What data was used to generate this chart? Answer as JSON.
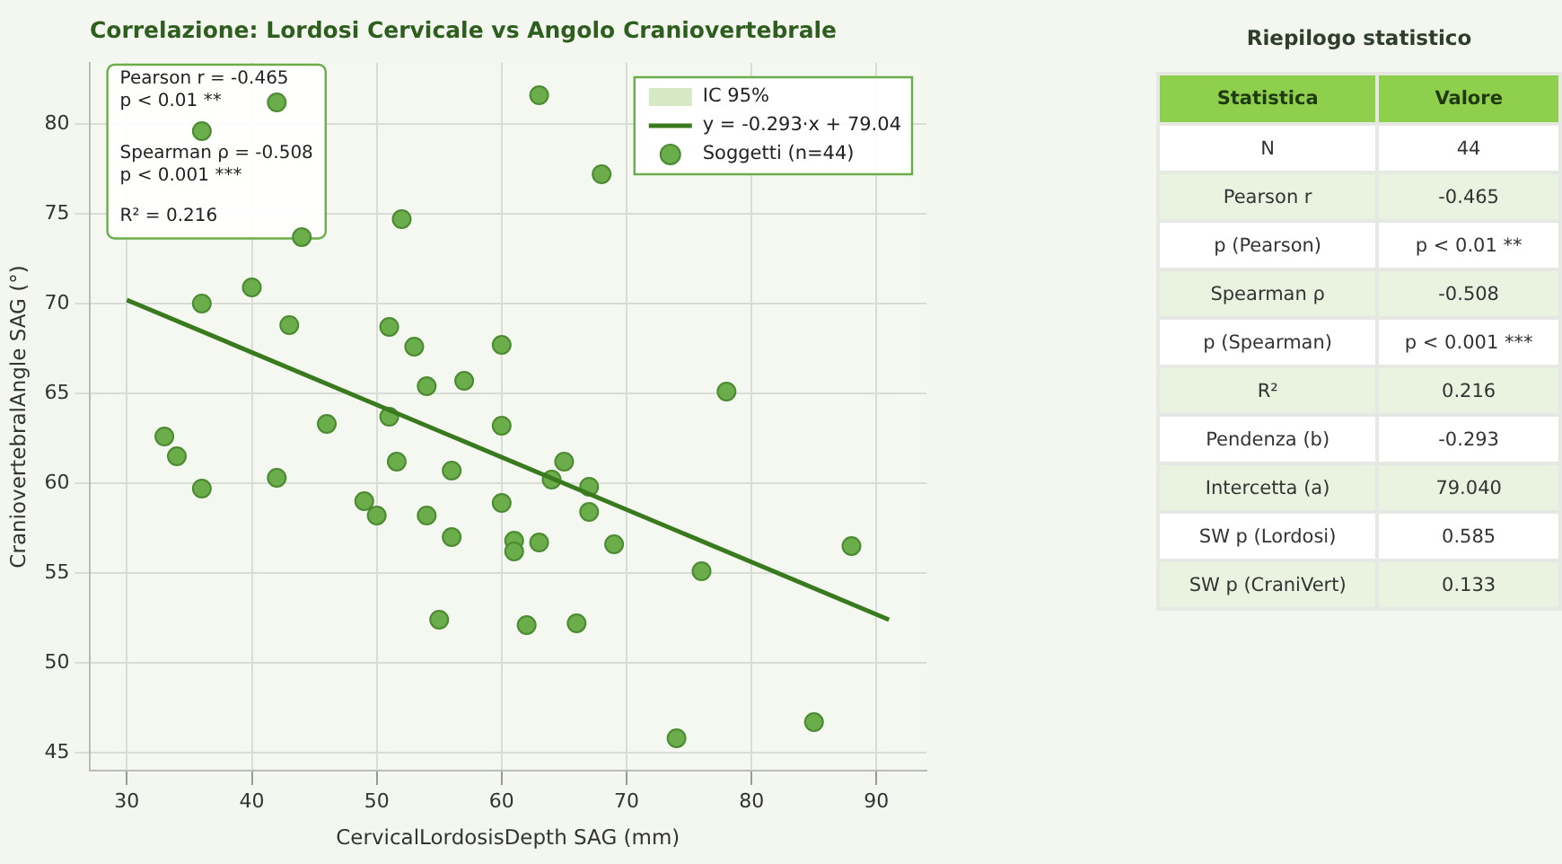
{
  "chart_data": [
    {
      "type": "scatter",
      "title": "Correlazione: Lordosi Cervicale vs Angolo Craniovertebrale",
      "xlabel": "CervicalLordosisDepth SAG (mm)",
      "ylabel": "CraniovertebralAngle SAG (°)",
      "xlim": [
        27,
        94
      ],
      "ylim": [
        44,
        83.4
      ],
      "xticks": [
        30,
        40,
        50,
        60,
        70,
        80,
        90
      ],
      "yticks": [
        45,
        50,
        55,
        60,
        65,
        70,
        75,
        80
      ],
      "grid": true,
      "legend": "top right",
      "annotations": [
        "Pearson r = -0.465\np < 0.01 **\n\nSpearman ρ = -0.508\np < 0.001 ***\n\nR² = 0.216"
      ],
      "series": [
        {
          "name": "IC 95%",
          "type": "area",
          "color": "#d5eac4"
        },
        {
          "name": "y = -0.293·x + 79.04",
          "type": "line",
          "color": "#3a7a1e",
          "line_style": "solid",
          "x": [
            30,
            91
          ],
          "values": [
            70.2,
            52.4
          ]
        },
        {
          "name": "Soggetti (n=44)",
          "type": "scatter",
          "color": "#6aad4a",
          "marker": "circle",
          "x": [
            42,
            36,
            63,
            68,
            52,
            44,
            40,
            36,
            43,
            51,
            53,
            60,
            54,
            57,
            78,
            46,
            51,
            60,
            33,
            34,
            36,
            42,
            51.6,
            56,
            49,
            50,
            54,
            56,
            60,
            61,
            61,
            63,
            55,
            62,
            65,
            64,
            67,
            67,
            69,
            76,
            88,
            66,
            74,
            85
          ],
          "values": [
            81.2,
            79.6,
            81.6,
            77.2,
            74.7,
            73.7,
            70.9,
            70,
            68.8,
            68.7,
            67.6,
            67.7,
            65.4,
            65.7,
            65.1,
            63.3,
            63.7,
            63.2,
            62.6,
            61.5,
            59.7,
            60.3,
            61.2,
            60.7,
            59,
            58.2,
            58.2,
            57,
            58.9,
            56.8,
            56.2,
            56.7,
            52.4,
            52.1,
            61.2,
            60.2,
            59.8,
            58.4,
            56.6,
            55.1,
            56.5,
            52.2,
            45.8,
            46.7
          ]
        }
      ]
    },
    {
      "type": "other",
      "title": "Riepilogo statistico",
      "annotations": [
        "Statistica",
        "Valore"
      ],
      "categories": [
        "N",
        "Pearson r",
        "p (Pearson)",
        "Spearman ρ",
        "p (Spearman)",
        "R²",
        "Pendenza (b)",
        "Intercetta (a)",
        "SW p (Lordosi)",
        "SW p (CraniVert)"
      ],
      "value_labels": [
        "44",
        "-0.465",
        "p < 0.01 **",
        "-0.508",
        "p < 0.001 ***",
        "0.216",
        "-0.293",
        "79.040",
        "0.585",
        "0.133"
      ]
    }
  ]
}
